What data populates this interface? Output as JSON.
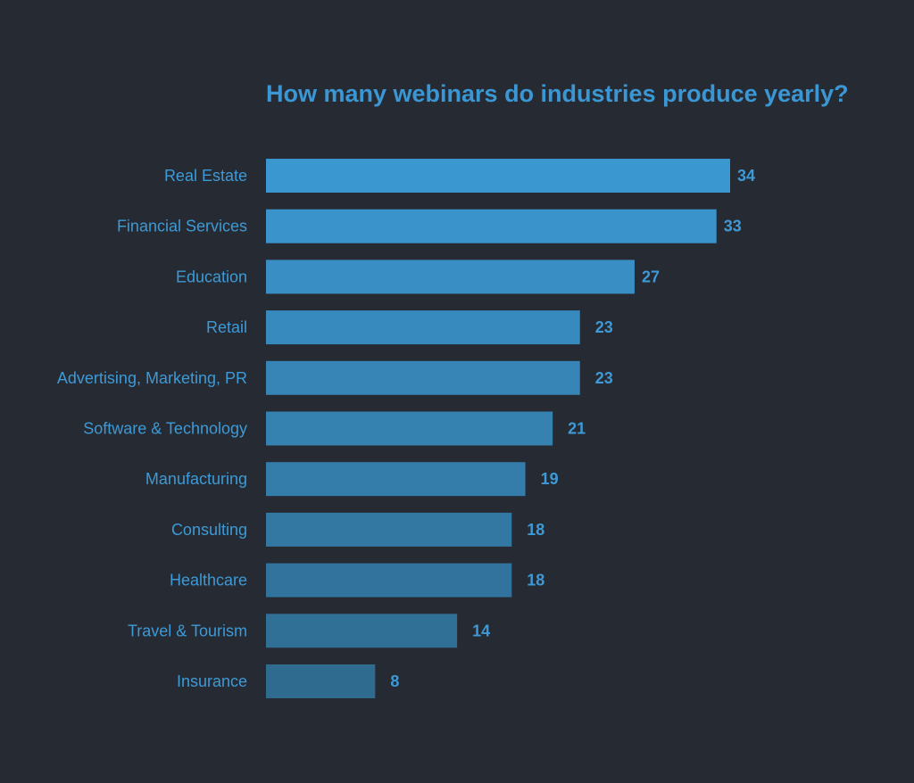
{
  "chart_data": {
    "type": "bar",
    "orientation": "horizontal",
    "title": "How many webinars do industries produce yearly?",
    "xlabel": "",
    "ylabel": "",
    "xlim": [
      0,
      34
    ],
    "grid": false,
    "categories": [
      "Real Estate",
      "Financial Services",
      "Education",
      "Retail",
      "Advertising, Marketing, PR",
      "Software & Technology",
      "Manufacturing",
      "Consulting",
      "Healthcare",
      "Travel & Tourism",
      "Insurance"
    ],
    "values": [
      34,
      33,
      27,
      23,
      23,
      21,
      19,
      18,
      18,
      14,
      8
    ],
    "colors": {
      "background": "#262a33",
      "bar_top": "#3b97d0",
      "bar_bottom": "#2f6a8f",
      "text": "#3d9ad6"
    }
  }
}
